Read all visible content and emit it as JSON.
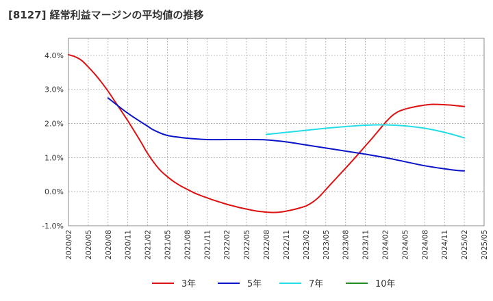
{
  "chart_data": {
    "type": "line",
    "title": "[8127]  経常利益マージンの平均値の推移",
    "ylim": [
      -1.0,
      4.5
    ],
    "yticks": [
      -1.0,
      0.0,
      1.0,
      2.0,
      3.0,
      4.0
    ],
    "ytick_labels": [
      "-1.0%",
      "0.0%",
      "1.0%",
      "2.0%",
      "3.0%",
      "4.0%"
    ],
    "x_ticks": [
      "2020/02",
      "2020/05",
      "2020/08",
      "2020/11",
      "2021/02",
      "2021/05",
      "2021/08",
      "2021/11",
      "2022/02",
      "2022/05",
      "2022/08",
      "2022/11",
      "2023/02",
      "2023/05",
      "2023/08",
      "2023/11",
      "2024/02",
      "2024/05",
      "2024/08",
      "2024/11",
      "2025/02",
      "2025/05"
    ],
    "grid": true,
    "legend_position": "bottom",
    "series": [
      {
        "name": "3年",
        "color": "#dd1111",
        "x": [
          "2020/02",
          "2020/03",
          "2020/04",
          "2020/05",
          "2020/06",
          "2020/07",
          "2020/08",
          "2020/09",
          "2020/10",
          "2020/11",
          "2020/12",
          "2021/01",
          "2021/02",
          "2021/03",
          "2021/04",
          "2021/05",
          "2021/06",
          "2021/07",
          "2021/08",
          "2021/09",
          "2021/10",
          "2021/11",
          "2021/12",
          "2022/01",
          "2022/02",
          "2022/03",
          "2022/04",
          "2022/05",
          "2022/06",
          "2022/07",
          "2022/08",
          "2022/09",
          "2022/10",
          "2022/11",
          "2022/12",
          "2023/01",
          "2023/02",
          "2023/03",
          "2023/04",
          "2023/05",
          "2023/06",
          "2023/07",
          "2023/08",
          "2023/09",
          "2023/10",
          "2023/11",
          "2023/12",
          "2024/01",
          "2024/02",
          "2024/03",
          "2024/04",
          "2024/05",
          "2024/06",
          "2024/07",
          "2024/08",
          "2024/09",
          "2024/10",
          "2024/11",
          "2024/12",
          "2025/01",
          "2025/02"
        ],
        "values": [
          4.02,
          3.96,
          3.85,
          3.66,
          3.45,
          3.21,
          2.95,
          2.66,
          2.37,
          2.08,
          1.77,
          1.45,
          1.12,
          0.84,
          0.61,
          0.44,
          0.29,
          0.17,
          0.07,
          -0.03,
          -0.11,
          -0.18,
          -0.25,
          -0.31,
          -0.37,
          -0.42,
          -0.47,
          -0.51,
          -0.55,
          -0.58,
          -0.6,
          -0.61,
          -0.6,
          -0.57,
          -0.53,
          -0.48,
          -0.42,
          -0.31,
          -0.15,
          0.06,
          0.27,
          0.48,
          0.69,
          0.9,
          1.12,
          1.34,
          1.56,
          1.79,
          2.02,
          2.22,
          2.35,
          2.42,
          2.47,
          2.51,
          2.54,
          2.56,
          2.56,
          2.55,
          2.54,
          2.52,
          2.5
        ]
      },
      {
        "name": "5年",
        "color": "#0a14c8",
        "x": [
          "2020/08",
          "2020/11",
          "2021/02",
          "2021/03",
          "2021/05",
          "2021/08",
          "2021/11",
          "2022/02",
          "2022/05",
          "2022/08",
          "2022/11",
          "2023/02",
          "2023/05",
          "2023/08",
          "2023/11",
          "2024/02",
          "2024/05",
          "2024/08",
          "2024/11",
          "2025/01",
          "2025/02"
        ],
        "values": [
          2.75,
          2.3,
          1.92,
          1.8,
          1.65,
          1.57,
          1.53,
          1.53,
          1.53,
          1.52,
          1.46,
          1.37,
          1.28,
          1.19,
          1.1,
          1.0,
          0.88,
          0.76,
          0.67,
          0.62,
          0.61
        ]
      },
      {
        "name": "7年",
        "color": "#22dde6",
        "x": [
          "2022/08",
          "2022/11",
          "2023/02",
          "2023/05",
          "2023/08",
          "2023/11",
          "2024/02",
          "2024/05",
          "2024/08",
          "2024/11",
          "2025/02"
        ],
        "values": [
          1.68,
          1.74,
          1.8,
          1.86,
          1.91,
          1.95,
          1.96,
          1.93,
          1.86,
          1.74,
          1.58
        ]
      },
      {
        "name": "10年",
        "color": "#228b22",
        "x": [],
        "values": []
      }
    ]
  }
}
